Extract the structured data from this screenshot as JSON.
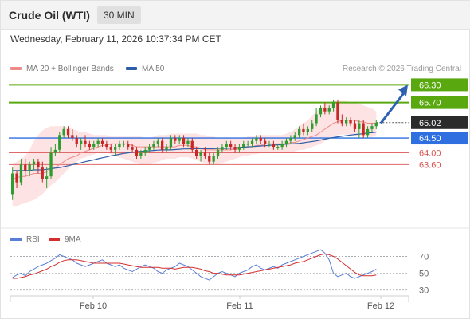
{
  "header": {
    "title": "Crude Oil (WTI)",
    "timeframe": "30 MIN"
  },
  "datetime": "Wednesday, February 11, 2026 10:37:34 PM CET",
  "legend": {
    "ma20_label": "MA 20 + Bollinger Bands",
    "ma20_color": "#f08a8a",
    "ma50_label": "MA 50",
    "ma50_color": "#2f5ea8"
  },
  "copyright": "Research © 2026 Trading Central",
  "chart_data": [
    {
      "type": "candlestick",
      "y_range": [
        61.8,
        66.5
      ],
      "x_labels": [
        "Feb 10",
        "Feb 11",
        "Feb 12"
      ],
      "colors": {
        "up": "#2e9c2e",
        "down": "#c62828",
        "resistance": "#5aa80f",
        "support": "#2f6fe0",
        "pivot": "#e06a6a",
        "target_arrow": "#2e62b0"
      },
      "candles": [
        [
          62.6,
          63.5,
          62.4,
          63.3
        ],
        [
          63.3,
          63.4,
          62.8,
          63.0
        ],
        [
          63.0,
          63.8,
          62.9,
          63.6
        ],
        [
          63.6,
          63.8,
          63.2,
          63.4
        ],
        [
          63.4,
          63.7,
          63.2,
          63.6
        ],
        [
          63.6,
          63.8,
          63.4,
          63.7
        ],
        [
          63.7,
          63.8,
          63.3,
          63.5
        ],
        [
          63.5,
          63.7,
          63.0,
          63.1
        ],
        [
          63.1,
          63.5,
          62.8,
          63.2
        ],
        [
          63.2,
          64.2,
          63.1,
          64.0
        ],
        [
          64.0,
          64.3,
          63.9,
          64.1
        ],
        [
          64.1,
          64.7,
          64.0,
          64.6
        ],
        [
          64.6,
          64.9,
          64.5,
          64.8
        ],
        [
          64.8,
          64.9,
          64.5,
          64.6
        ],
        [
          64.6,
          64.8,
          64.4,
          64.5
        ],
        [
          64.5,
          64.6,
          64.2,
          64.3
        ],
        [
          64.3,
          64.5,
          64.1,
          64.4
        ],
        [
          64.4,
          64.6,
          64.2,
          64.3
        ],
        [
          64.3,
          64.4,
          64.1,
          64.2
        ],
        [
          64.2,
          64.4,
          64.1,
          64.3
        ],
        [
          64.3,
          64.5,
          64.2,
          64.4
        ],
        [
          64.4,
          64.5,
          64.2,
          64.3
        ],
        [
          64.3,
          64.4,
          64.1,
          64.2
        ],
        [
          64.2,
          64.3,
          64.0,
          64.1
        ],
        [
          64.1,
          64.3,
          63.9,
          64.2
        ],
        [
          64.2,
          64.4,
          64.1,
          64.3
        ],
        [
          64.3,
          64.4,
          64.2,
          64.3
        ],
        [
          64.3,
          64.4,
          64.1,
          64.2
        ],
        [
          64.2,
          64.3,
          64.0,
          64.1
        ],
        [
          64.1,
          64.2,
          63.8,
          63.9
        ],
        [
          63.9,
          64.1,
          63.8,
          64.0
        ],
        [
          64.0,
          64.2,
          63.9,
          64.1
        ],
        [
          64.1,
          64.3,
          64.0,
          64.2
        ],
        [
          64.2,
          64.4,
          64.1,
          64.3
        ],
        [
          64.3,
          64.5,
          64.2,
          64.4
        ],
        [
          64.4,
          64.5,
          64.0,
          64.1
        ],
        [
          64.1,
          64.3,
          64.0,
          64.2
        ],
        [
          64.2,
          64.6,
          64.1,
          64.5
        ],
        [
          64.5,
          64.6,
          64.3,
          64.4
        ],
        [
          64.4,
          64.6,
          64.3,
          64.5
        ],
        [
          64.5,
          64.6,
          64.2,
          64.3
        ],
        [
          64.3,
          64.5,
          64.2,
          64.4
        ],
        [
          64.4,
          64.5,
          64.0,
          64.1
        ],
        [
          64.1,
          64.2,
          63.8,
          63.9
        ],
        [
          63.9,
          64.1,
          63.7,
          64.0
        ],
        [
          64.0,
          64.2,
          63.8,
          63.9
        ],
        [
          63.9,
          64.0,
          63.6,
          63.7
        ],
        [
          63.7,
          64.0,
          63.6,
          63.9
        ],
        [
          63.9,
          64.2,
          63.8,
          64.1
        ],
        [
          64.1,
          64.3,
          64.0,
          64.2
        ],
        [
          64.2,
          64.4,
          64.1,
          64.3
        ],
        [
          64.3,
          64.4,
          64.1,
          64.2
        ],
        [
          64.2,
          64.3,
          64.0,
          64.1
        ],
        [
          64.1,
          64.3,
          64.0,
          64.2
        ],
        [
          64.2,
          64.4,
          64.1,
          64.3
        ],
        [
          64.3,
          64.4,
          64.2,
          64.3
        ],
        [
          64.3,
          64.5,
          64.2,
          64.4
        ],
        [
          64.4,
          64.6,
          64.3,
          64.5
        ],
        [
          64.5,
          64.6,
          64.3,
          64.4
        ],
        [
          64.4,
          64.5,
          64.2,
          64.3
        ],
        [
          64.3,
          64.4,
          64.2,
          64.3
        ],
        [
          64.3,
          64.4,
          64.1,
          64.2
        ],
        [
          64.2,
          64.3,
          64.1,
          64.2
        ],
        [
          64.2,
          64.4,
          64.1,
          64.3
        ],
        [
          64.3,
          64.5,
          64.2,
          64.4
        ],
        [
          64.4,
          64.6,
          64.3,
          64.5
        ],
        [
          64.5,
          64.7,
          64.4,
          64.6
        ],
        [
          64.6,
          64.9,
          64.5,
          64.8
        ],
        [
          64.8,
          65.0,
          64.6,
          64.7
        ],
        [
          64.7,
          64.9,
          64.6,
          64.8
        ],
        [
          64.8,
          65.1,
          64.7,
          65.0
        ],
        [
          65.0,
          65.5,
          64.9,
          65.3
        ],
        [
          65.3,
          65.6,
          65.2,
          65.5
        ],
        [
          65.5,
          65.7,
          65.3,
          65.4
        ],
        [
          65.4,
          65.6,
          65.3,
          65.5
        ],
        [
          65.5,
          65.8,
          65.4,
          65.7
        ],
        [
          65.7,
          65.8,
          65.0,
          65.1
        ],
        [
          65.1,
          65.3,
          64.9,
          65.0
        ],
        [
          65.0,
          65.2,
          64.9,
          65.1
        ],
        [
          65.1,
          65.2,
          64.9,
          65.0
        ],
        [
          65.0,
          65.1,
          64.7,
          64.8
        ],
        [
          64.8,
          65.1,
          64.5,
          65.0
        ],
        [
          65.0,
          65.1,
          64.5,
          64.6
        ],
        [
          64.6,
          64.9,
          64.5,
          64.8
        ],
        [
          64.8,
          65.0,
          64.7,
          64.9
        ],
        [
          64.9,
          65.1,
          64.8,
          65.02
        ]
      ],
      "ma20": [
        63.1,
        63.15,
        63.2,
        63.2,
        63.25,
        63.3,
        63.3,
        63.3,
        63.35,
        63.45,
        63.5,
        63.6,
        63.7,
        63.8,
        63.85,
        63.9,
        64.0,
        64.05,
        64.1,
        64.15,
        64.2,
        64.25,
        64.25,
        64.3,
        64.3,
        64.3,
        64.3,
        64.3,
        64.25,
        64.2,
        64.2,
        64.2,
        64.2,
        64.2,
        64.2,
        64.2,
        64.2,
        64.2,
        64.2,
        64.25,
        64.25,
        64.25,
        64.2,
        64.2,
        64.15,
        64.1,
        64.1,
        64.1,
        64.1,
        64.1,
        64.1,
        64.1,
        64.15,
        64.15,
        64.2,
        64.2,
        64.2,
        64.25,
        64.25,
        64.3,
        64.3,
        64.3,
        64.3,
        64.3,
        64.3,
        64.35,
        64.35,
        64.4,
        64.45,
        64.5,
        64.55,
        64.6,
        64.7,
        64.8,
        64.9,
        65.0,
        65.05,
        65.1,
        65.1,
        65.1,
        65.1,
        65.05,
        65.05,
        65.0,
        65.0,
        65.0
      ],
      "ma50": [
        63.4,
        63.4,
        63.4,
        63.4,
        63.4,
        63.42,
        63.42,
        63.42,
        63.44,
        63.46,
        63.48,
        63.5,
        63.53,
        63.56,
        63.6,
        63.63,
        63.66,
        63.7,
        63.73,
        63.76,
        63.8,
        63.83,
        63.86,
        63.9,
        63.92,
        63.95,
        63.98,
        64.0,
        64.02,
        64.04,
        64.05,
        64.06,
        64.07,
        64.08,
        64.09,
        64.1,
        64.1,
        64.1,
        64.11,
        64.12,
        64.13,
        64.13,
        64.14,
        64.14,
        64.14,
        64.14,
        64.14,
        64.14,
        64.15,
        64.15,
        64.15,
        64.16,
        64.17,
        64.18,
        64.19,
        64.2,
        64.21,
        64.22,
        64.23,
        64.24,
        64.25,
        64.26,
        64.27,
        64.28,
        64.29,
        64.3,
        64.31,
        64.32,
        64.34,
        64.36,
        64.38,
        64.4,
        64.43,
        64.46,
        64.49,
        64.52,
        64.54,
        64.56,
        64.58,
        64.6,
        64.62,
        64.63,
        64.65,
        64.67,
        64.68,
        64.7
      ],
      "bollinger_upper": [
        63.6,
        63.7,
        63.8,
        63.9,
        64.1,
        64.4,
        64.6,
        64.75,
        64.85,
        64.9,
        64.9,
        64.9,
        64.9,
        64.85,
        64.8,
        64.75,
        64.7,
        64.7,
        64.65,
        64.6,
        64.6,
        64.6,
        64.6,
        64.55,
        64.55,
        64.55,
        64.55,
        64.55,
        64.55,
        64.55,
        64.55,
        64.5,
        64.5,
        64.55,
        64.6,
        64.6,
        64.6,
        64.65,
        64.65,
        64.65,
        64.65,
        64.65,
        64.65,
        64.65,
        64.6,
        64.6,
        64.55,
        64.55,
        64.5,
        64.5,
        64.5,
        64.5,
        64.5,
        64.5,
        64.5,
        64.55,
        64.55,
        64.6,
        64.6,
        64.6,
        64.6,
        64.6,
        64.6,
        64.6,
        64.65,
        64.7,
        64.8,
        64.9,
        65.0,
        65.1,
        65.25,
        65.4,
        65.55,
        65.65,
        65.72,
        65.75,
        65.75,
        65.75,
        65.75,
        65.7,
        65.7,
        65.65,
        65.6,
        65.55,
        65.5,
        65.4
      ],
      "bollinger_lower": [
        62.2,
        62.2,
        62.25,
        62.3,
        62.35,
        62.4,
        62.5,
        62.6,
        62.75,
        62.9,
        63.0,
        63.15,
        63.3,
        63.45,
        63.6,
        63.7,
        63.8,
        63.85,
        63.9,
        63.95,
        64.0,
        64.0,
        64.0,
        63.95,
        63.9,
        63.85,
        63.8,
        63.75,
        63.7,
        63.65,
        63.6,
        63.6,
        63.6,
        63.65,
        63.7,
        63.75,
        63.8,
        63.8,
        63.8,
        63.85,
        63.85,
        63.85,
        63.8,
        63.75,
        63.7,
        63.65,
        63.6,
        63.6,
        63.6,
        63.65,
        63.7,
        63.75,
        63.8,
        63.85,
        63.9,
        63.9,
        63.95,
        63.95,
        64.0,
        64.0,
        64.0,
        64.0,
        64.0,
        64.0,
        64.0,
        64.0,
        64.05,
        64.1,
        64.1,
        64.15,
        64.2,
        64.25,
        64.3,
        64.4,
        64.5,
        64.55,
        64.6,
        64.62,
        64.62,
        64.6,
        64.58,
        64.56,
        64.55,
        64.54,
        64.53,
        64.6
      ],
      "levels": [
        {
          "value": 66.3,
          "label": "66.30",
          "kind": "resistance"
        },
        {
          "value": 65.7,
          "label": "65.70",
          "kind": "resistance"
        },
        {
          "value": 65.02,
          "label": "65.02",
          "kind": "last"
        },
        {
          "value": 64.5,
          "label": "64.50",
          "kind": "support"
        },
        {
          "value": 64.0,
          "label": "64.00",
          "kind": "pivot"
        },
        {
          "value": 63.6,
          "label": "63.60",
          "kind": "pivot"
        }
      ],
      "forecast_arrow": {
        "from": 65.0,
        "to": 66.3
      }
    },
    {
      "type": "line",
      "series": [
        {
          "name": "RSI",
          "color": "#5b7fd6",
          "values": [
            45,
            48,
            50,
            47,
            52,
            55,
            58,
            60,
            62,
            65,
            68,
            72,
            70,
            68,
            66,
            62,
            60,
            58,
            60,
            62,
            64,
            66,
            62,
            60,
            58,
            60,
            56,
            54,
            52,
            55,
            58,
            60,
            58,
            56,
            52,
            50,
            54,
            56,
            58,
            62,
            60,
            58,
            54,
            50,
            46,
            44,
            42,
            46,
            50,
            52,
            50,
            48,
            46,
            50,
            52,
            54,
            58,
            60,
            56,
            54,
            56,
            58,
            56,
            60,
            62,
            64,
            66,
            68,
            70,
            72,
            74,
            76,
            78,
            74,
            66,
            50,
            46,
            48,
            50,
            46,
            44,
            46,
            48,
            50,
            52,
            55
          ]
        },
        {
          "name": "9MA",
          "color": "#d32f2f",
          "values": [
            44,
            44,
            45,
            46,
            48,
            49,
            51,
            53,
            55,
            58,
            60,
            63,
            65,
            66,
            66,
            66,
            65,
            64,
            63,
            62,
            62,
            62,
            62,
            62,
            62,
            62,
            61,
            60,
            59,
            58,
            57,
            57,
            57,
            57,
            57,
            56,
            56,
            56,
            55,
            56,
            57,
            57,
            57,
            56,
            55,
            53,
            52,
            50,
            50,
            49,
            48,
            48,
            48,
            48,
            49,
            50,
            51,
            52,
            53,
            54,
            55,
            56,
            57,
            58,
            59,
            60,
            62,
            63,
            64,
            66,
            68,
            70,
            72,
            73,
            72,
            70,
            67,
            63,
            59,
            55,
            51,
            48,
            47,
            47,
            47,
            48
          ]
        }
      ],
      "y_ticks": [
        70,
        50,
        30
      ],
      "y_range": [
        25,
        80
      ]
    }
  ]
}
